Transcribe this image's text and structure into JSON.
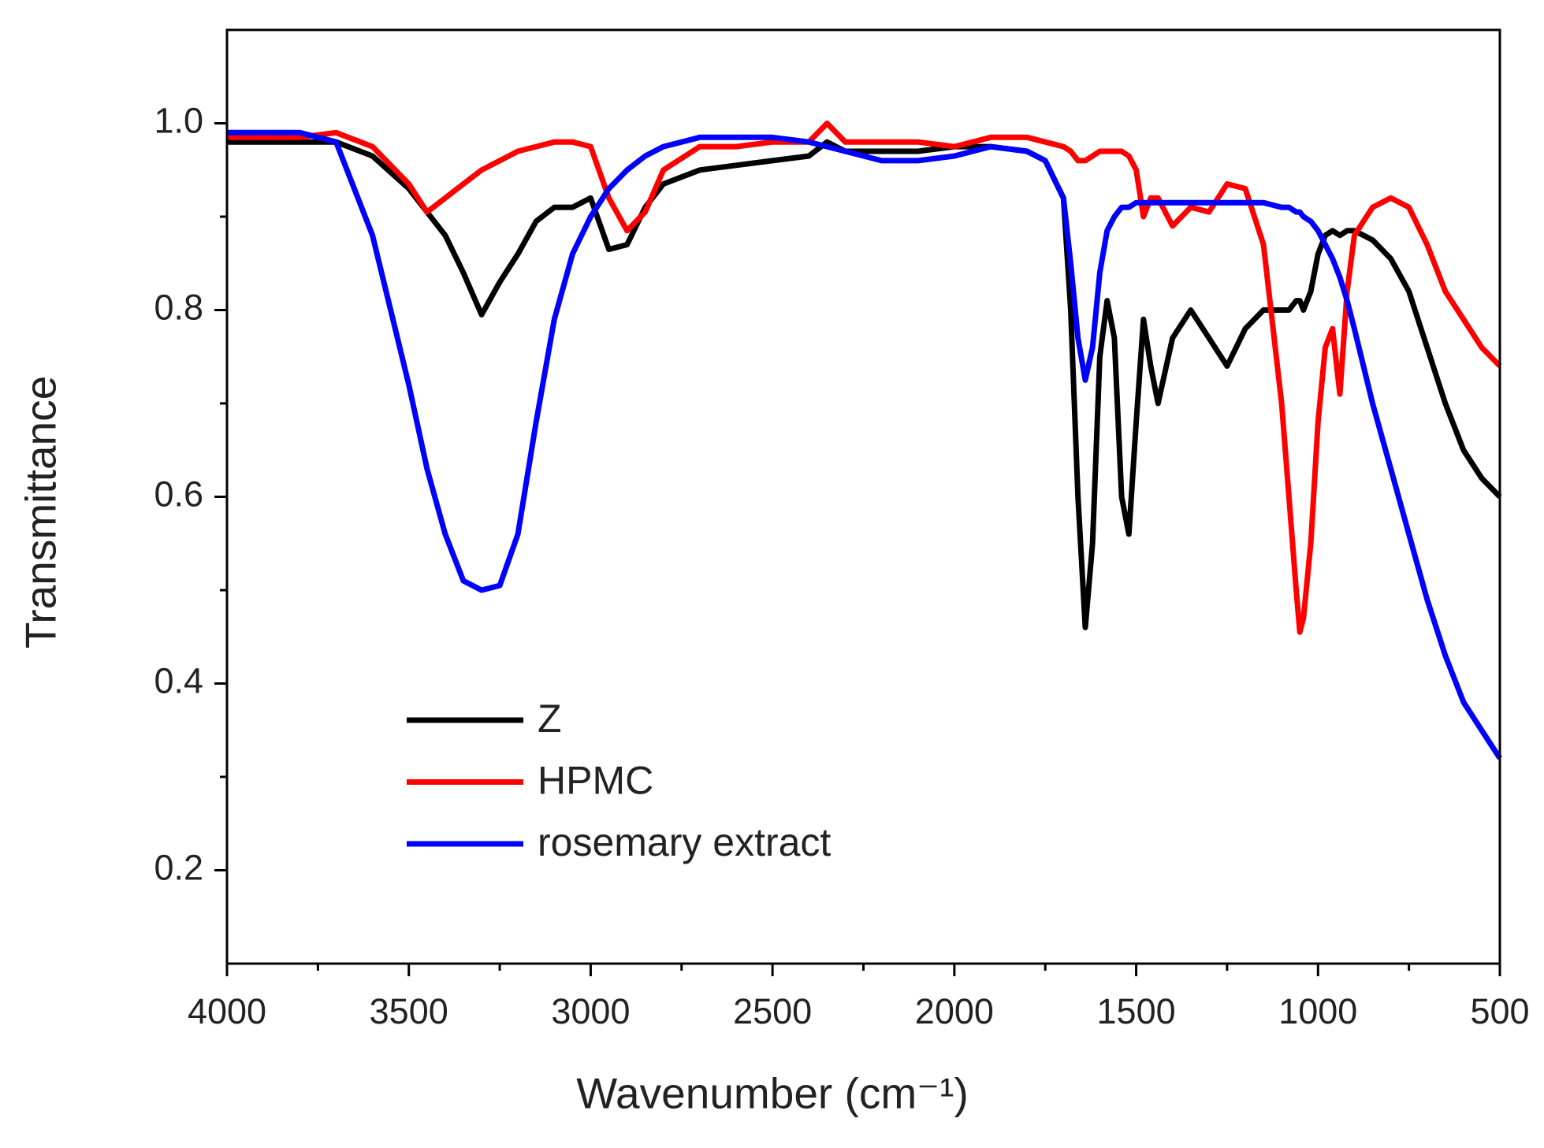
{
  "chart_data": {
    "type": "line",
    "xlabel": "Wavenumber (cm⁻¹)",
    "ylabel": "Transmittance",
    "x": [
      4000,
      3900,
      3800,
      3700,
      3600,
      3500,
      3450,
      3400,
      3350,
      3300,
      3250,
      3200,
      3150,
      3100,
      3050,
      3000,
      2950,
      2900,
      2850,
      2800,
      2700,
      2600,
      2500,
      2400,
      2350,
      2300,
      2200,
      2100,
      2000,
      1900,
      1800,
      1750,
      1700,
      1680,
      1660,
      1640,
      1620,
      1600,
      1580,
      1560,
      1540,
      1520,
      1500,
      1480,
      1460,
      1440,
      1400,
      1350,
      1300,
      1250,
      1200,
      1150,
      1100,
      1080,
      1060,
      1050,
      1040,
      1020,
      1000,
      980,
      960,
      940,
      920,
      900,
      850,
      800,
      750,
      700,
      650,
      600,
      550,
      500
    ],
    "series": [
      {
        "name": "Z",
        "color": "#000000",
        "values": [
          0.98,
          0.98,
          0.98,
          0.98,
          0.965,
          0.93,
          0.905,
          0.88,
          0.84,
          0.795,
          0.83,
          0.86,
          0.895,
          0.91,
          0.91,
          0.92,
          0.865,
          0.87,
          0.91,
          0.935,
          0.95,
          0.955,
          0.96,
          0.965,
          0.98,
          0.97,
          0.97,
          0.97,
          0.975,
          0.975,
          0.97,
          0.96,
          0.92,
          0.8,
          0.6,
          0.46,
          0.55,
          0.75,
          0.81,
          0.77,
          0.6,
          0.56,
          0.68,
          0.79,
          0.74,
          0.7,
          0.77,
          0.8,
          0.77,
          0.74,
          0.78,
          0.8,
          0.8,
          0.8,
          0.81,
          0.81,
          0.8,
          0.82,
          0.86,
          0.88,
          0.885,
          0.88,
          0.885,
          0.885,
          0.875,
          0.855,
          0.82,
          0.76,
          0.7,
          0.65,
          0.62,
          0.6
        ]
      },
      {
        "name": "HPMC",
        "color": "#ff0000",
        "values": [
          0.985,
          0.985,
          0.985,
          0.99,
          0.975,
          0.935,
          0.905,
          0.92,
          0.935,
          0.95,
          0.96,
          0.97,
          0.975,
          0.98,
          0.98,
          0.975,
          0.92,
          0.885,
          0.905,
          0.95,
          0.975,
          0.975,
          0.98,
          0.98,
          1.0,
          0.98,
          0.98,
          0.98,
          0.975,
          0.985,
          0.985,
          0.98,
          0.975,
          0.97,
          0.96,
          0.96,
          0.965,
          0.97,
          0.97,
          0.97,
          0.97,
          0.965,
          0.95,
          0.9,
          0.92,
          0.92,
          0.89,
          0.91,
          0.905,
          0.935,
          0.93,
          0.87,
          0.7,
          0.6,
          0.5,
          0.455,
          0.47,
          0.55,
          0.68,
          0.76,
          0.78,
          0.71,
          0.82,
          0.88,
          0.91,
          0.92,
          0.91,
          0.87,
          0.82,
          0.79,
          0.76,
          0.74
        ]
      },
      {
        "name": "rosemary extract",
        "color": "#0000ff",
        "values": [
          0.99,
          0.99,
          0.99,
          0.98,
          0.88,
          0.72,
          0.63,
          0.56,
          0.51,
          0.5,
          0.505,
          0.56,
          0.68,
          0.79,
          0.86,
          0.9,
          0.93,
          0.95,
          0.965,
          0.975,
          0.985,
          0.985,
          0.985,
          0.98,
          0.975,
          0.97,
          0.96,
          0.96,
          0.965,
          0.975,
          0.97,
          0.96,
          0.92,
          0.85,
          0.77,
          0.725,
          0.76,
          0.84,
          0.885,
          0.9,
          0.91,
          0.91,
          0.915,
          0.915,
          0.915,
          0.915,
          0.915,
          0.915,
          0.915,
          0.915,
          0.915,
          0.915,
          0.91,
          0.91,
          0.905,
          0.905,
          0.9,
          0.895,
          0.885,
          0.87,
          0.855,
          0.835,
          0.81,
          0.78,
          0.7,
          0.63,
          0.56,
          0.49,
          0.43,
          0.38,
          0.35,
          0.32
        ]
      }
    ],
    "xlim": [
      4000,
      500
    ],
    "xticks": [
      4000,
      3500,
      3000,
      2500,
      2000,
      1500,
      1000,
      500
    ],
    "xminorticks": [
      3750,
      3250,
      2750,
      2250,
      1750,
      1250,
      750
    ],
    "ylim": [
      0.1,
      1.1
    ],
    "yticks": [
      0.2,
      0.4,
      0.6,
      0.8,
      {
        "value": 1,
        "label": "1.0"
      }
    ],
    "yminorticks": [
      0.3,
      0.5,
      0.7,
      0.9
    ],
    "legend": "lower left"
  }
}
